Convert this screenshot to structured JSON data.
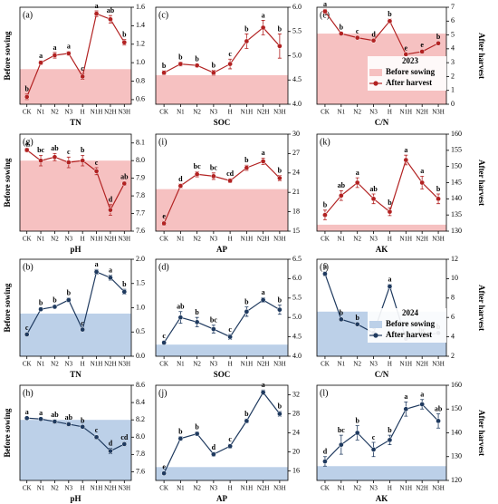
{
  "chart_data": [
    {
      "type": "line",
      "title": "(a)",
      "xlabel": "TN",
      "ylabel": "Before sowing",
      "categories": [
        "CK",
        "N1",
        "N2",
        "N3",
        "H",
        "N1H",
        "N2H",
        "N3H"
      ],
      "ylim": [
        0.55,
        1.6
      ],
      "yticks": [
        0.6,
        0.8,
        {
          "value": 1,
          "label": "1.0"
        },
        1.2,
        1.4,
        1.6
      ],
      "baseline": {
        "name": "Before sowing",
        "color": "#f6c1c1",
        "value": 0.93
      },
      "series": [
        {
          "name": "After harvest",
          "color": "#b22222",
          "values": [
            0.63,
            1.0,
            1.08,
            1.1,
            0.85,
            1.53,
            1.47,
            1.22
          ],
          "errors": [
            0.03,
            0.02,
            0.03,
            0.02,
            0.03,
            0.03,
            0.04,
            0.03
          ],
          "letters": [
            "b",
            "a",
            "a",
            "a",
            "c",
            "a",
            "ab",
            "b"
          ]
        }
      ]
    },
    {
      "type": "line",
      "title": "(c)",
      "xlabel": "SOC",
      "categories": [
        "CK",
        "N1",
        "N2",
        "N3",
        "H",
        "N1H",
        "N2H",
        "N3H"
      ],
      "ylim": [
        4,
        6
      ],
      "yticks": [
        {
          "value": 4,
          "label": "4.0"
        },
        4.5,
        {
          "value": 5,
          "label": "5.0"
        },
        5.5,
        {
          "value": 6,
          "label": "6.0"
        }
      ],
      "baseline": {
        "name": "Before sowing",
        "color": "#f6c1c1",
        "value": 4.6
      },
      "series": [
        {
          "name": "After harvest",
          "color": "#b22222",
          "values": [
            4.65,
            4.83,
            4.8,
            4.65,
            4.83,
            5.3,
            5.58,
            5.2
          ],
          "errors": [
            0.04,
            0.04,
            0.03,
            0.05,
            0.1,
            0.15,
            0.15,
            0.25
          ],
          "letters": [
            "b",
            "b",
            "b",
            "b",
            "c",
            "b",
            "a",
            "b"
          ]
        }
      ]
    },
    {
      "type": "line",
      "title": "(e)",
      "xlabel": "C/N",
      "y2label": "After harvest",
      "categories": [
        "CK",
        "N1",
        "N2",
        "N3",
        "H",
        "N1H",
        "N2H",
        "N3H"
      ],
      "ylim": [
        0,
        7
      ],
      "yticks": [
        0,
        1,
        2,
        3,
        4,
        5,
        6,
        7
      ],
      "baseline": {
        "name": "Before sowing",
        "color": "#f6c1c1",
        "value": 5.1
      },
      "legend_title": "2023",
      "legend": true,
      "series": [
        {
          "name": "After harvest",
          "color": "#b22222",
          "values": [
            6.7,
            5.1,
            4.8,
            4.6,
            6.0,
            3.6,
            3.8,
            4.4
          ],
          "errors": [
            0.15,
            0.1,
            0.08,
            0.08,
            0.15,
            0.1,
            0.12,
            0.1
          ],
          "letters": [
            "a",
            "b",
            "c",
            "d",
            "b",
            "e",
            "e",
            "b"
          ]
        }
      ]
    },
    {
      "type": "line",
      "title": "(g)",
      "xlabel": "pH",
      "ylabel": "Before sowing",
      "categories": [
        "CK",
        "N1",
        "N2",
        "N3",
        "H",
        "N1H",
        "N2H",
        "N3H"
      ],
      "ylim": [
        7.6,
        8.15
      ],
      "yticks": [
        7.6,
        7.7,
        7.8,
        7.9,
        {
          "value": 8,
          "label": "8.0"
        },
        8.1
      ],
      "baseline": {
        "name": "Before sowing",
        "color": "#f6c1c1",
        "value": 8.0
      },
      "series": [
        {
          "name": "After harvest",
          "color": "#b22222",
          "values": [
            8.06,
            8.0,
            8.02,
            7.99,
            8.0,
            7.94,
            7.72,
            7.87
          ],
          "errors": [
            0.01,
            0.03,
            0.02,
            0.03,
            0.03,
            0.02,
            0.03,
            0.01
          ],
          "letters": [
            "a",
            "bc",
            "ab",
            "c",
            "b",
            "c",
            "d",
            "ab"
          ]
        }
      ]
    },
    {
      "type": "line",
      "title": "(i)",
      "xlabel": "AP",
      "categories": [
        "CK",
        "N1",
        "N2",
        "N3",
        "H",
        "N1H",
        "N2H",
        "N3H"
      ],
      "ylim": [
        15,
        30
      ],
      "yticks": [
        15,
        18,
        21,
        24,
        27,
        30
      ],
      "baseline": {
        "name": "Before sowing",
        "color": "#f6c1c1",
        "value": 21.5
      },
      "series": [
        {
          "name": "After harvest",
          "color": "#b22222",
          "values": [
            16.2,
            22.0,
            23.8,
            23.5,
            22.8,
            24.8,
            25.8,
            23.2
          ],
          "errors": [
            0.3,
            0.3,
            0.4,
            0.5,
            0.3,
            0.4,
            0.5,
            0.4
          ],
          "letters": [
            "e",
            "d",
            "bc",
            "bc",
            "cd",
            "b",
            "a",
            "b"
          ]
        }
      ]
    },
    {
      "type": "line",
      "title": "(k)",
      "xlabel": "AK",
      "y2label": "After harvest",
      "categories": [
        "CK",
        "N1",
        "N2",
        "N3",
        "H",
        "N1H",
        "N2H",
        "N3H"
      ],
      "ylim": [
        130,
        160
      ],
      "yticks": [
        130,
        135,
        140,
        145,
        150,
        155,
        160
      ],
      "baseline": {
        "name": "Before sowing",
        "color": "#f6c1c1",
        "value": 132
      },
      "series": [
        {
          "name": "After harvest",
          "color": "#b22222",
          "values": [
            135,
            141,
            145,
            140,
            136,
            152,
            145,
            140
          ],
          "errors": [
            1.5,
            1.5,
            1.5,
            1.5,
            1.2,
            1.5,
            2,
            1.5
          ],
          "letters": [
            "b",
            "ab",
            "a",
            "ab",
            "b",
            "a",
            "a",
            "b"
          ]
        }
      ]
    },
    {
      "type": "line",
      "title": "(b)",
      "xlabel": "TN",
      "ylabel": "Before sowing",
      "categories": [
        "CK",
        "N1",
        "N2",
        "N3",
        "H",
        "N1H",
        "N2H",
        "N3H"
      ],
      "ylim": [
        0,
        2
      ],
      "yticks": [
        {
          "value": 0,
          "label": "0.0"
        },
        0.5,
        {
          "value": 1,
          "label": "1.0"
        },
        1.5,
        {
          "value": 2,
          "label": "2.0"
        }
      ],
      "baseline": {
        "name": "Before sowing",
        "color": "#bcd0e8",
        "value": 0.88
      },
      "series": [
        {
          "name": "After harvest",
          "color": "#1f3a5f",
          "values": [
            0.45,
            0.97,
            1.02,
            1.16,
            0.55,
            1.74,
            1.62,
            1.33
          ],
          "errors": [
            0.03,
            0.03,
            0.03,
            0.04,
            0.03,
            0.05,
            0.05,
            0.05
          ],
          "letters": [
            "c",
            "b",
            "b",
            "b",
            "c",
            "a",
            "a",
            "b"
          ]
        }
      ]
    },
    {
      "type": "line",
      "title": "(d)",
      "xlabel": "SOC",
      "categories": [
        "CK",
        "N1",
        "N2",
        "N3",
        "H",
        "N1H",
        "N2H",
        "N3H"
      ],
      "ylim": [
        4,
        6.5
      ],
      "yticks": [
        {
          "value": 4,
          "label": "4.0"
        },
        4.5,
        {
          "value": 5,
          "label": "5.0"
        },
        5.5,
        {
          "value": 6,
          "label": "6.0"
        },
        6.5
      ],
      "baseline": {
        "name": "Before sowing",
        "color": "#bcd0e8",
        "value": 4.3
      },
      "series": [
        {
          "name": "After harvest",
          "color": "#1f3a5f",
          "values": [
            4.35,
            5.0,
            4.88,
            4.7,
            4.5,
            5.15,
            5.45,
            5.2
          ],
          "errors": [
            0.04,
            0.15,
            0.12,
            0.1,
            0.06,
            0.12,
            0.06,
            0.12
          ],
          "letters": [
            "c",
            "ab",
            "b",
            "bc",
            "c",
            "b",
            "a",
            "b"
          ]
        }
      ]
    },
    {
      "type": "line",
      "title": "(f)",
      "xlabel": "C/N",
      "y2label": "After harvest",
      "categories": [
        "CK",
        "N1",
        "N2",
        "N3",
        "H",
        "N1H",
        "N2H",
        "N3H"
      ],
      "ylim": [
        2,
        12
      ],
      "yticks": [
        2,
        4,
        6,
        8,
        10,
        12
      ],
      "baseline": {
        "name": "Before sowing",
        "color": "#bcd0e8",
        "value": 6.6
      },
      "legend_title": "2024",
      "legend": true,
      "series": [
        {
          "name": "After harvest",
          "color": "#1f3a5f",
          "values": [
            10.5,
            5.8,
            5.3,
            4.4,
            9.2,
            3.8,
            4.1,
            4.4
          ],
          "errors": [
            0.2,
            0.15,
            0.12,
            0.1,
            0.2,
            0.1,
            0.1,
            0.1
          ],
          "letters": [
            "a",
            "b",
            "b",
            "c",
            "a",
            "c",
            "bc",
            "b"
          ]
        }
      ]
    },
    {
      "type": "line",
      "title": "(h)",
      "xlabel": "pH",
      "ylabel": "Before sowing",
      "categories": [
        "CK",
        "N1",
        "N2",
        "N3",
        "H",
        "N1H",
        "N2H",
        "N3H"
      ],
      "ylim": [
        7.5,
        8.6
      ],
      "yticks": [
        7.6,
        7.8,
        {
          "value": 8,
          "label": "8.0"
        },
        8.2,
        8.4,
        8.6
      ],
      "baseline": {
        "name": "Before sowing",
        "color": "#bcd0e8",
        "value": 8.2
      },
      "series": [
        {
          "name": "After harvest",
          "color": "#1f3a5f",
          "values": [
            8.22,
            8.21,
            8.18,
            8.15,
            8.12,
            8.0,
            7.84,
            7.92
          ],
          "errors": [
            0.01,
            0.01,
            0.02,
            0.02,
            0.01,
            0.02,
            0.03,
            0.02
          ],
          "letters": [
            "a",
            "a",
            "ab",
            "ab",
            "b",
            "c",
            "d",
            "cd"
          ]
        }
      ]
    },
    {
      "type": "line",
      "title": "(j)",
      "xlabel": "AP",
      "categories": [
        "CK",
        "N1",
        "N2",
        "N3",
        "H",
        "N1H",
        "N2H",
        "N3H"
      ],
      "ylim": [
        14,
        34
      ],
      "yticks": [
        16,
        20,
        24,
        28,
        32
      ],
      "baseline": {
        "name": "Before sowing",
        "color": "#bcd0e8",
        "value": 16.8
      },
      "series": [
        {
          "name": "After harvest",
          "color": "#1f3a5f",
          "values": [
            15.5,
            22.8,
            23.8,
            19.5,
            21.2,
            26.5,
            32.5,
            28.0
          ],
          "errors": [
            0.3,
            0.4,
            0.4,
            0.4,
            0.4,
            0.4,
            0.5,
            0.5
          ],
          "letters": [
            "e",
            "b",
            "b",
            "d",
            "c",
            "b",
            "a",
            "b"
          ]
        }
      ]
    },
    {
      "type": "line",
      "title": "(l)",
      "xlabel": "AK",
      "y2label": "After harvest",
      "categories": [
        "CK",
        "N1",
        "N2",
        "N3",
        "H",
        "N1H",
        "N2H",
        "N3H"
      ],
      "ylim": [
        120,
        160
      ],
      "yticks": [
        120,
        130,
        140,
        150,
        160
      ],
      "baseline": {
        "name": "Before sowing",
        "color": "#bcd0e8",
        "value": 126
      },
      "series": [
        {
          "name": "After harvest",
          "color": "#1f3a5f",
          "values": [
            128,
            135,
            140,
            133,
            137,
            150,
            152,
            145
          ],
          "errors": [
            2,
            4,
            3,
            3,
            2,
            3,
            2,
            3
          ],
          "letters": [
            "d",
            "bc",
            "b",
            "c",
            "b",
            "a",
            "a",
            "ab"
          ]
        }
      ]
    }
  ]
}
